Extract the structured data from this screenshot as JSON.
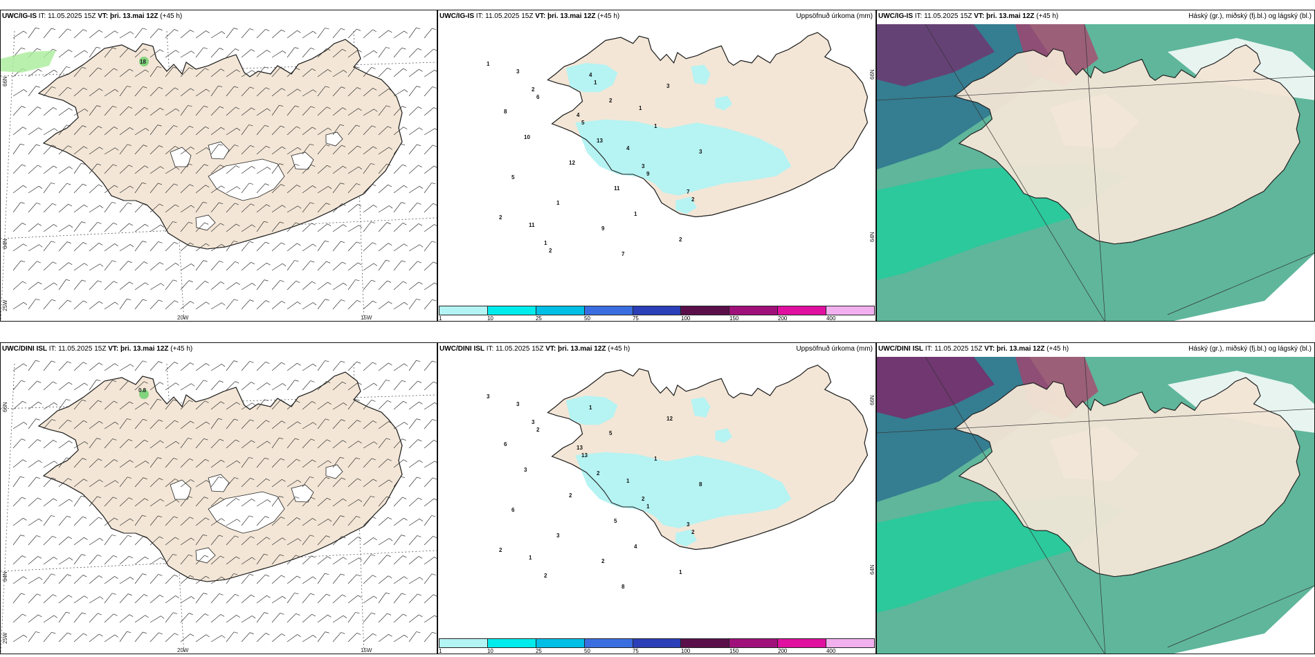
{
  "rows": [
    {
      "model": "UWC/IG-IS",
      "it_label": "IT:",
      "it_value": "11.05.2025 15Z",
      "vt_label": "VT:",
      "vt_value": "þri. 13.mai 12Z",
      "lead": "(+45 h)",
      "wind_marker": "18",
      "precip_labels": [
        "1",
        "2",
        "4",
        "13",
        "3",
        "7",
        "2",
        "1",
        "4",
        "2",
        "1",
        "3",
        "5",
        "1",
        "9",
        "7",
        "3",
        "8",
        "10",
        "12",
        "11",
        "1",
        "2",
        "3",
        "6",
        "5",
        "4",
        "9",
        "2",
        "11",
        "2",
        "1",
        "1"
      ]
    },
    {
      "model": "UWC/DINI ISL",
      "it_label": "IT:",
      "it_value": "11.05.2025 15Z",
      "vt_label": "VT:",
      "vt_value": "þri. 13.mai 12Z",
      "lead": "(+45 h)",
      "wind_marker": "0.8",
      "precip_labels": [
        "3",
        "3",
        "13",
        "2",
        "2",
        "3",
        "2",
        "2",
        "1",
        "5",
        "1",
        "8",
        "6",
        "3",
        "2",
        "8",
        "12",
        "6",
        "3",
        "2",
        "5",
        "4",
        "1",
        "3",
        "2",
        "13",
        "1",
        "1",
        "2",
        "1"
      ]
    }
  ],
  "precip_title": "Uppsöfnuð úrkoma (mm)",
  "cloud_title": "Háský (gr.), miðský (fj.bl.) og lágský (bl.)",
  "lon_labels": [
    "20W",
    "15W",
    "25W"
  ],
  "lat_labels": [
    "66N",
    "64N"
  ],
  "legend": {
    "ticks": [
      "1",
      "10",
      "25",
      "50",
      "75",
      "100",
      "150",
      "200",
      "400"
    ],
    "colors": [
      "#b3f4f4",
      "#00ecec",
      "#00bfe6",
      "#3a6ee0",
      "#2a3fb8",
      "#5a0f4a",
      "#a0107a",
      "#e010a0",
      "#f2b0ef"
    ]
  },
  "colors": {
    "land": "#f3e6d6",
    "precip": "#b6f3f3",
    "cloud_green": "#2a9d7a",
    "cloud_bright": "#00d89a",
    "cloud_blue": "#2b6f8f",
    "cloud_purple": "#7a2a6a",
    "ocean": "#ffffff"
  }
}
